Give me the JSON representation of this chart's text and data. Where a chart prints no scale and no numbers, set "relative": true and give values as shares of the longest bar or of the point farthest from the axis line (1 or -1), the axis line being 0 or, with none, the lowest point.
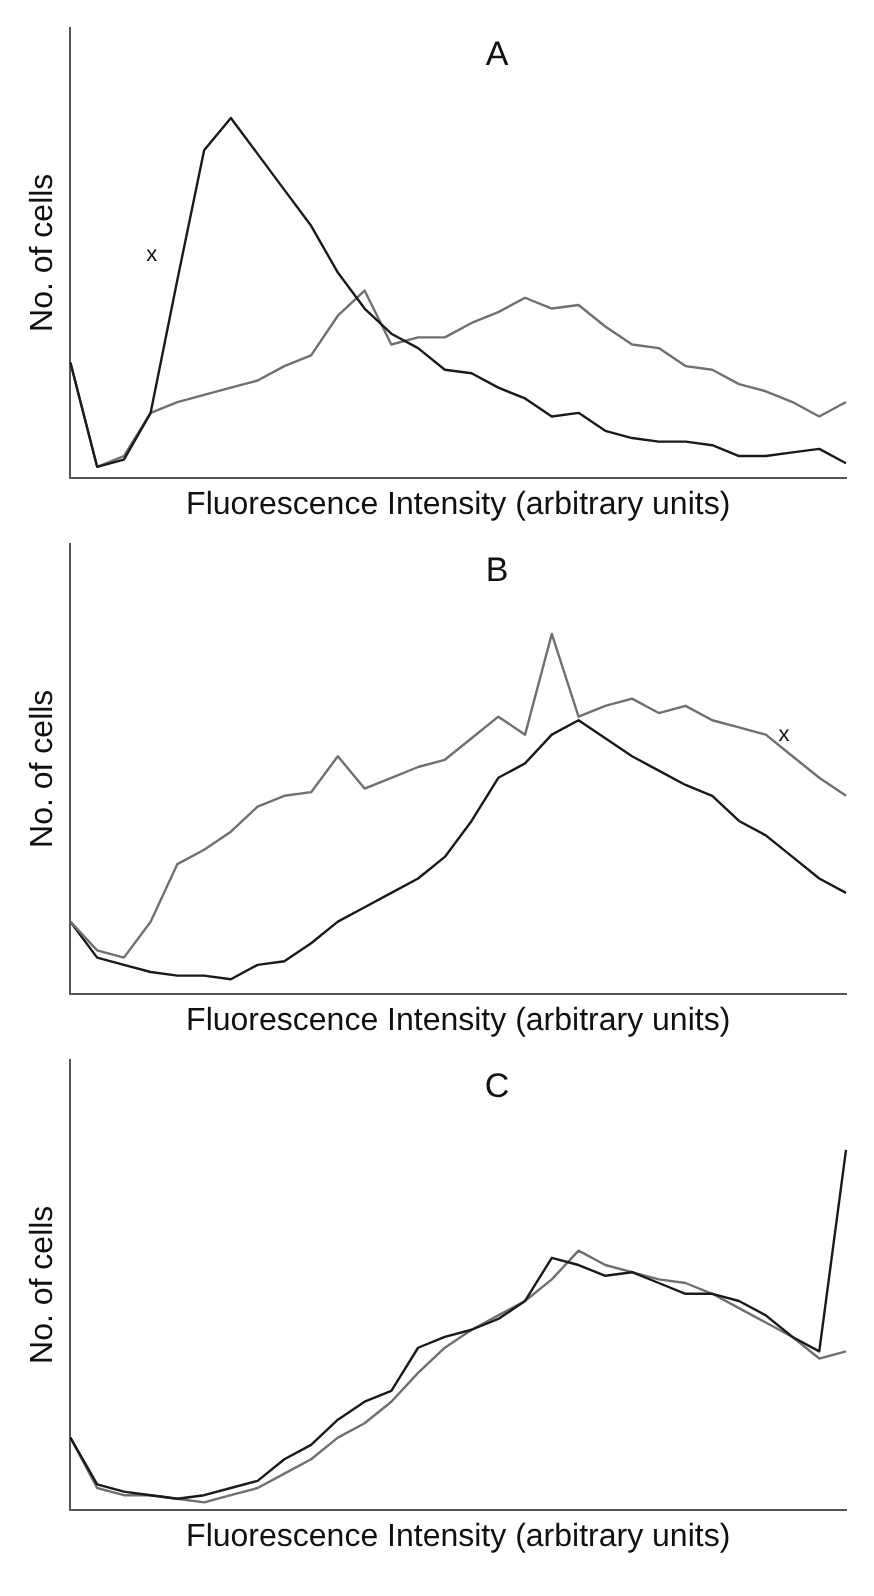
{
  "chart_data": [
    {
      "type": "line",
      "title": "A",
      "xlabel": "Fluorescence Intensity (arbitrary units)",
      "ylabel": "No. of cells",
      "relative": true,
      "tick_labels": false,
      "grid": false,
      "legend": false,
      "marker": "none",
      "annotations": [
        "x"
      ],
      "categories": [
        null,
        null,
        null,
        null,
        null,
        null,
        null,
        null,
        null,
        null,
        null,
        null,
        null,
        null,
        null,
        null,
        null,
        null,
        null,
        null,
        null,
        null,
        null,
        null,
        null,
        null,
        null,
        null,
        null,
        null
      ],
      "series": [
        {
          "color": "#1a1a1a",
          "values": [
            0.32,
            0.03,
            0.05,
            0.18,
            0.55,
            0.91,
            1.0,
            0.9,
            0.8,
            0.7,
            0.57,
            0.47,
            0.4,
            0.36,
            0.3,
            0.29,
            0.25,
            0.22,
            0.17,
            0.18,
            0.13,
            0.11,
            0.1,
            0.1,
            0.09,
            0.06,
            0.06,
            0.07,
            0.08,
            0.04
          ]
        },
        {
          "color": "#707070",
          "values": [
            0.32,
            0.03,
            0.06,
            0.18,
            0.21,
            0.23,
            0.25,
            0.27,
            0.31,
            0.34,
            0.45,
            0.52,
            0.37,
            0.39,
            0.39,
            0.43,
            0.46,
            0.5,
            0.47,
            0.48,
            0.42,
            0.37,
            0.36,
            0.31,
            0.3,
            0.26,
            0.24,
            0.21,
            0.17,
            0.21
          ]
        }
      ]
    },
    {
      "type": "line",
      "title": "B",
      "xlabel": "Fluorescence Intensity (arbitrary units)",
      "ylabel": "No. of cells",
      "relative": true,
      "tick_labels": false,
      "grid": false,
      "legend": false,
      "marker": "none",
      "annotations": [
        "x"
      ],
      "categories": [
        null,
        null,
        null,
        null,
        null,
        null,
        null,
        null,
        null,
        null,
        null,
        null,
        null,
        null,
        null,
        null,
        null,
        null,
        null,
        null,
        null,
        null,
        null,
        null,
        null,
        null,
        null,
        null,
        null,
        null
      ],
      "series": [
        {
          "color": "#707070",
          "values": [
            0.2,
            0.12,
            0.1,
            0.2,
            0.36,
            0.4,
            0.45,
            0.52,
            0.55,
            0.56,
            0.66,
            0.57,
            0.6,
            0.63,
            0.65,
            0.71,
            0.77,
            0.72,
            1.0,
            0.77,
            0.8,
            0.82,
            0.78,
            0.8,
            0.76,
            0.74,
            0.72,
            0.66,
            0.6,
            0.55
          ]
        },
        {
          "color": "#1a1a1a",
          "values": [
            0.2,
            0.1,
            0.08,
            0.06,
            0.05,
            0.05,
            0.04,
            0.08,
            0.09,
            0.14,
            0.2,
            0.24,
            0.28,
            0.32,
            0.38,
            0.48,
            0.6,
            0.64,
            0.72,
            0.76,
            0.71,
            0.66,
            0.62,
            0.58,
            0.55,
            0.48,
            0.44,
            0.38,
            0.32,
            0.28
          ]
        }
      ]
    },
    {
      "type": "line",
      "title": "C",
      "xlabel": "Fluorescence Intensity (arbitrary units)",
      "ylabel": "No. of cells",
      "relative": true,
      "tick_labels": false,
      "grid": false,
      "legend": false,
      "marker": "none",
      "categories": [
        null,
        null,
        null,
        null,
        null,
        null,
        null,
        null,
        null,
        null,
        null,
        null,
        null,
        null,
        null,
        null,
        null,
        null,
        null,
        null,
        null,
        null,
        null,
        null,
        null,
        null,
        null,
        null,
        null,
        null
      ],
      "series": [
        {
          "color": "#1a1a1a",
          "values": [
            0.2,
            0.07,
            0.05,
            0.04,
            0.03,
            0.04,
            0.06,
            0.08,
            0.14,
            0.18,
            0.25,
            0.3,
            0.33,
            0.45,
            0.48,
            0.5,
            0.53,
            0.58,
            0.7,
            0.68,
            0.65,
            0.66,
            0.63,
            0.6,
            0.6,
            0.58,
            0.54,
            0.48,
            0.44,
            1.0
          ]
        },
        {
          "color": "#707070",
          "values": [
            0.2,
            0.06,
            0.04,
            0.04,
            0.03,
            0.02,
            0.04,
            0.06,
            0.1,
            0.14,
            0.2,
            0.24,
            0.3,
            0.38,
            0.45,
            0.5,
            0.54,
            0.58,
            0.64,
            0.72,
            0.68,
            0.66,
            0.64,
            0.63,
            0.6,
            0.56,
            0.52,
            0.48,
            0.42,
            0.44
          ]
        }
      ]
    }
  ]
}
